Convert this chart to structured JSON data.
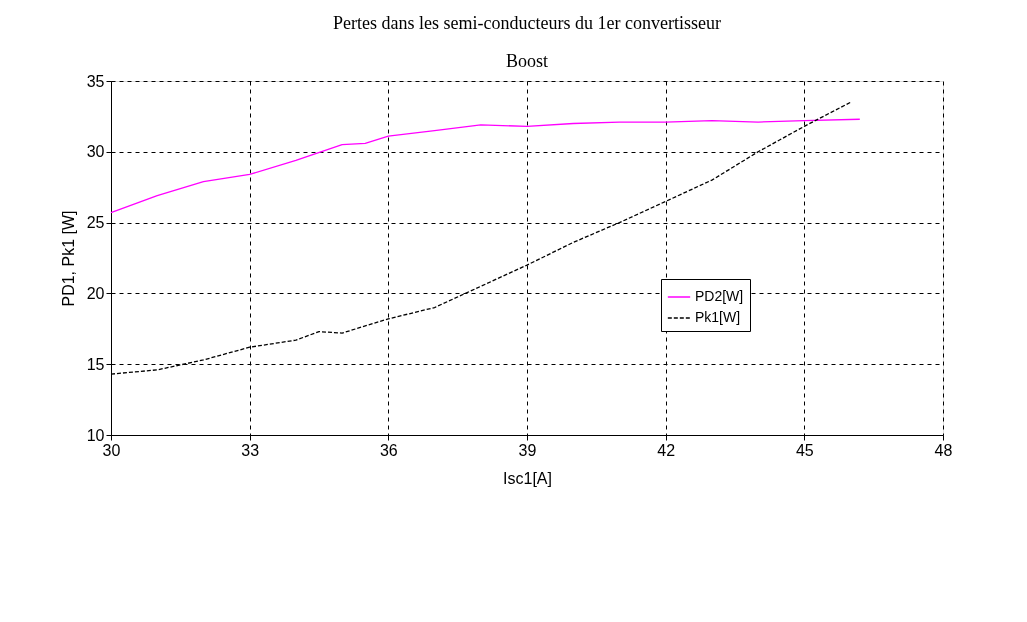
{
  "chart_data": {
    "type": "line",
    "title": "Pertes dans les semi-conducteurs du 1er  convertisseur Boost",
    "xlabel": "Isc1[A]",
    "ylabel": "PD1, Pk1 [W]",
    "xlim": [
      30,
      48
    ],
    "xticks": [
      30,
      33,
      36,
      39,
      42,
      45,
      48
    ],
    "ylim": [
      10,
      35
    ],
    "yticks": [
      10,
      15,
      20,
      25,
      30,
      35
    ],
    "grid": true,
    "legend": "right",
    "series": [
      {
        "name": "PD2[W]",
        "color": "#ff00ff",
        "line_style": "solid",
        "x": [
          30,
          31,
          32,
          33,
          34,
          35,
          35.5,
          36,
          37,
          38,
          39,
          40,
          41,
          42,
          43,
          44,
          45,
          46.2
        ],
        "values": [
          25.7,
          26.9,
          27.9,
          28.4,
          29.4,
          30.5,
          30.6,
          31.1,
          31.5,
          31.9,
          31.8,
          32.0,
          32.1,
          32.1,
          32.2,
          32.1,
          32.2,
          32.3
        ]
      },
      {
        "name": "Pk1[W]",
        "color": "#000000",
        "line_style": "dashed",
        "x": [
          30,
          31,
          32,
          33,
          34,
          34.5,
          35,
          36,
          37,
          38,
          39,
          40,
          41,
          42,
          43,
          44,
          45,
          46
        ],
        "values": [
          14.3,
          14.6,
          15.3,
          16.2,
          16.7,
          17.3,
          17.2,
          18.2,
          19.0,
          20.5,
          22.0,
          23.6,
          25.0,
          26.5,
          28.0,
          30.0,
          31.8,
          33.5
        ]
      }
    ]
  }
}
